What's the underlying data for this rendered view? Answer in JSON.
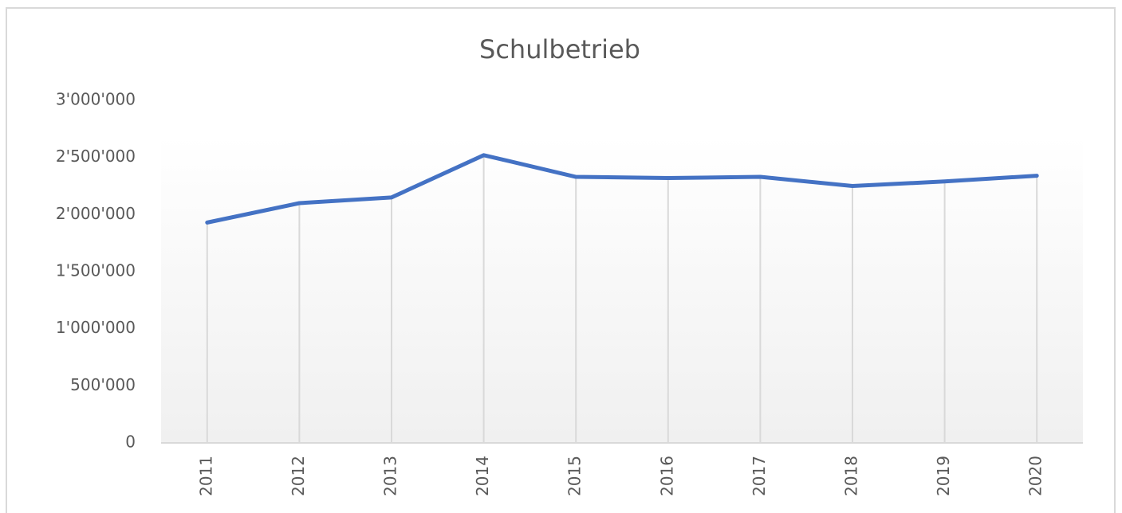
{
  "chart_data": {
    "type": "line",
    "title": "Schulbetrieb",
    "categories": [
      "2011",
      "2012",
      "2013",
      "2014",
      "2015",
      "2016",
      "2017",
      "2018",
      "2019",
      "2020"
    ],
    "series": [
      {
        "name": "Schulbetrieb",
        "color": "#4472c4",
        "values": [
          1930000,
          2100000,
          2150000,
          2520000,
          2330000,
          2320000,
          2330000,
          2250000,
          2290000,
          2340000
        ]
      }
    ],
    "ylim": [
      0,
      3000000
    ],
    "yticks": [
      0,
      {
        "value": 500000,
        "label": "500'000"
      },
      {
        "value": 1000000,
        "label": "1'000'000"
      },
      {
        "value": 1500000,
        "label": "1'500'000"
      },
      {
        "value": 2000000,
        "label": "2'000'000"
      },
      {
        "value": 2500000,
        "label": "2'500'000"
      },
      {
        "value": 3000000,
        "label": "3'000'000"
      }
    ],
    "drop_lines": true
  }
}
